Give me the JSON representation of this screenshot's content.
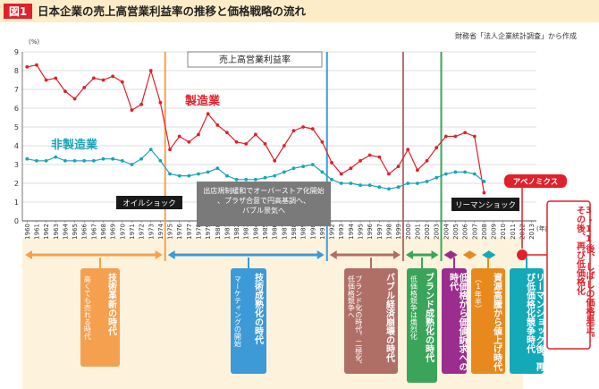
{
  "header": {
    "badge": "図1",
    "title": "日本企業の売上高営業利益率の推移と価格戦略の流れ",
    "source": "財務省「法人企業統計調査」から作成"
  },
  "chart_data": {
    "type": "line",
    "title": "売上高営業利益率",
    "yunit": "(%)",
    "xunit": "(年度)",
    "ylim": [
      0,
      9
    ],
    "yticks": [
      "0",
      "1",
      "2",
      "3",
      "4",
      "5",
      "6",
      "7",
      "8",
      "9"
    ],
    "x": [
      "1960",
      "1961",
      "1962",
      "1963",
      "1964",
      "1965",
      "1966",
      "1967",
      "1968",
      "1969",
      "1970",
      "1971",
      "1972",
      "1973",
      "1974",
      "1975",
      "1976",
      "1977",
      "1978",
      "1979",
      "1980",
      "1981",
      "1982",
      "1983",
      "1984",
      "1985",
      "1986",
      "1987",
      "1988",
      "1989",
      "1990",
      "1991",
      "1992",
      "1993",
      "1994",
      "1995",
      "1996",
      "1997",
      "1998",
      "1999",
      "2000",
      "2001",
      "2002",
      "2003",
      "2004",
      "2005",
      "2006",
      "2007",
      "2008",
      "2009",
      "2010",
      "2011",
      "2012",
      "2013"
    ],
    "series": [
      {
        "name": "製造業",
        "color": "#e0202a",
        "values": [
          8.2,
          8.3,
          7.5,
          7.6,
          6.9,
          6.5,
          7.1,
          7.6,
          7.5,
          7.7,
          7.4,
          5.9,
          6.2,
          8.0,
          6.3,
          3.8,
          4.5,
          4.2,
          4.6,
          5.7,
          5.1,
          4.7,
          4.2,
          4.1,
          4.6,
          4.1,
          3.2,
          4.0,
          4.8,
          5.0,
          4.9,
          4.2,
          3.1,
          2.5,
          2.8,
          3.2,
          3.5,
          3.4,
          2.5,
          2.9,
          3.8,
          2.7,
          3.2,
          3.9,
          4.5,
          4.5,
          4.7,
          4.5,
          1.5,
          null,
          null,
          null,
          null,
          null
        ]
      },
      {
        "name": "非製造業",
        "color": "#1aa3b8",
        "values": [
          3.3,
          3.2,
          3.2,
          3.4,
          3.2,
          3.2,
          3.2,
          3.2,
          3.3,
          3.3,
          3.2,
          3.0,
          3.3,
          3.8,
          3.2,
          2.5,
          2.4,
          2.4,
          2.5,
          2.6,
          2.8,
          2.4,
          2.2,
          2.2,
          2.2,
          2.3,
          2.4,
          2.6,
          2.8,
          2.9,
          3.0,
          2.6,
          2.2,
          2.0,
          2.0,
          1.9,
          1.9,
          1.8,
          1.7,
          1.8,
          2.0,
          2.0,
          2.1,
          2.3,
          2.5,
          2.6,
          2.6,
          2.5,
          2.1,
          null,
          null,
          null,
          null,
          null
        ]
      }
    ],
    "events": [
      {
        "label": "オイルショック",
        "year": 1973.5
      },
      {
        "label": "出店規制緩和でオーバーストア化開始、プラザ合意で円高基調へ、バブル景気へ",
        "year": 1985
      },
      {
        "label": "リーマンショック",
        "year": 2008.5
      },
      {
        "label": "アベノミクス",
        "year": 2012.5
      }
    ]
  },
  "eras": [
    {
      "title": "技術革新の時代",
      "sub": "高くても売れる時代",
      "color": "#f5a04e"
    },
    {
      "title": "技術成熟化の時代",
      "sub": "マーケティングの開始",
      "color": "#3d9ad6"
    },
    {
      "title": "バブル経済崩壊の時代",
      "sub": "ブランド化の時代、二極化、低価格競争へ",
      "color": "#b06f66"
    },
    {
      "title": "ブランド成熟化の時代",
      "sub": "低価格競争は熾烈化",
      "color": "#3aa55a"
    },
    {
      "title": "低価格から価値訴求への時代",
      "sub": "",
      "color": "#9b2d8f"
    },
    {
      "title": "資源高騰から値上げ時代",
      "sub": "（1年半）",
      "color": "#e8891e"
    },
    {
      "title": "リーマンショック後、再び低価格化競争時代",
      "sub": "",
      "color": "#14a9b8"
    },
    {
      "title": "3・11後、しばしの価格是正。その後、再び低価格化",
      "sub": "",
      "color": "#e0202a"
    }
  ]
}
